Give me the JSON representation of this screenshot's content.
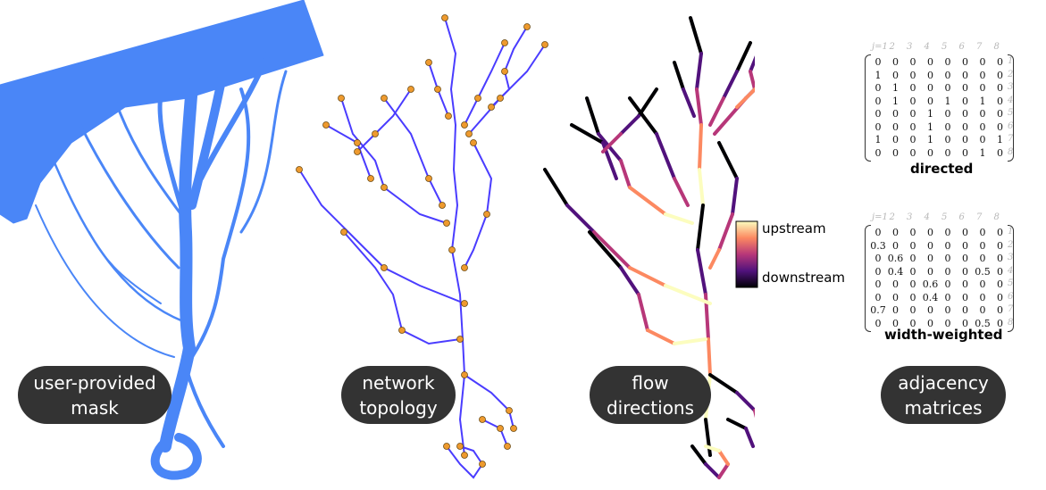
{
  "panels": {
    "mask": {
      "label": "user-provided\nmask",
      "color": "#4a86f7"
    },
    "topology": {
      "label": "network\ntopology",
      "edge_color": "#4a3cff",
      "node_color": "#ee9a2e"
    },
    "flow": {
      "label": "flow\ndirections",
      "colorbar_top": "upstream",
      "colorbar_bottom": "downstream"
    },
    "matrices": {
      "label": "adjacency\nmatrices"
    }
  },
  "matrices": {
    "row_index_labels": [
      "j=1",
      "2",
      "3",
      "4",
      "5",
      "6",
      "7",
      "8"
    ],
    "col_index_labels": [
      "1",
      "2",
      "3",
      "4",
      "5",
      "6",
      "7",
      "8"
    ],
    "directed": {
      "caption": "directed",
      "rows": [
        [
          "0",
          "0",
          "0",
          "0",
          "0",
          "0",
          "0",
          "0"
        ],
        [
          "1",
          "0",
          "0",
          "0",
          "0",
          "0",
          "0",
          "0"
        ],
        [
          "0",
          "1",
          "0",
          "0",
          "0",
          "0",
          "0",
          "0"
        ],
        [
          "0",
          "1",
          "0",
          "0",
          "1",
          "0",
          "1",
          "0"
        ],
        [
          "0",
          "0",
          "0",
          "1",
          "0",
          "0",
          "0",
          "0"
        ],
        [
          "0",
          "0",
          "0",
          "1",
          "0",
          "0",
          "0",
          "0"
        ],
        [
          "1",
          "0",
          "0",
          "1",
          "0",
          "0",
          "0",
          "1"
        ],
        [
          "0",
          "0",
          "0",
          "0",
          "0",
          "0",
          "1",
          "0"
        ]
      ]
    },
    "weighted": {
      "caption": "width-weighted",
      "rows": [
        [
          "0",
          "0",
          "0",
          "0",
          "0",
          "0",
          "0",
          "0"
        ],
        [
          "0.3",
          "0",
          "0",
          "0",
          "0",
          "0",
          "0",
          "0"
        ],
        [
          "0",
          "0.6",
          "0",
          "0",
          "0",
          "0",
          "0",
          "0"
        ],
        [
          "0",
          "0.4",
          "0",
          "0",
          "0",
          "0",
          "0.5",
          "0"
        ],
        [
          "0",
          "0",
          "0",
          "0.6",
          "0",
          "0",
          "0",
          "0"
        ],
        [
          "0",
          "0",
          "0",
          "0.4",
          "0",
          "0",
          "0",
          "0"
        ],
        [
          "0.7",
          "0",
          "0",
          "0",
          "0",
          "0",
          "0",
          "0"
        ],
        [
          "0",
          "0",
          "0",
          "0",
          "0",
          "0",
          "0.5",
          "0"
        ]
      ]
    }
  }
}
